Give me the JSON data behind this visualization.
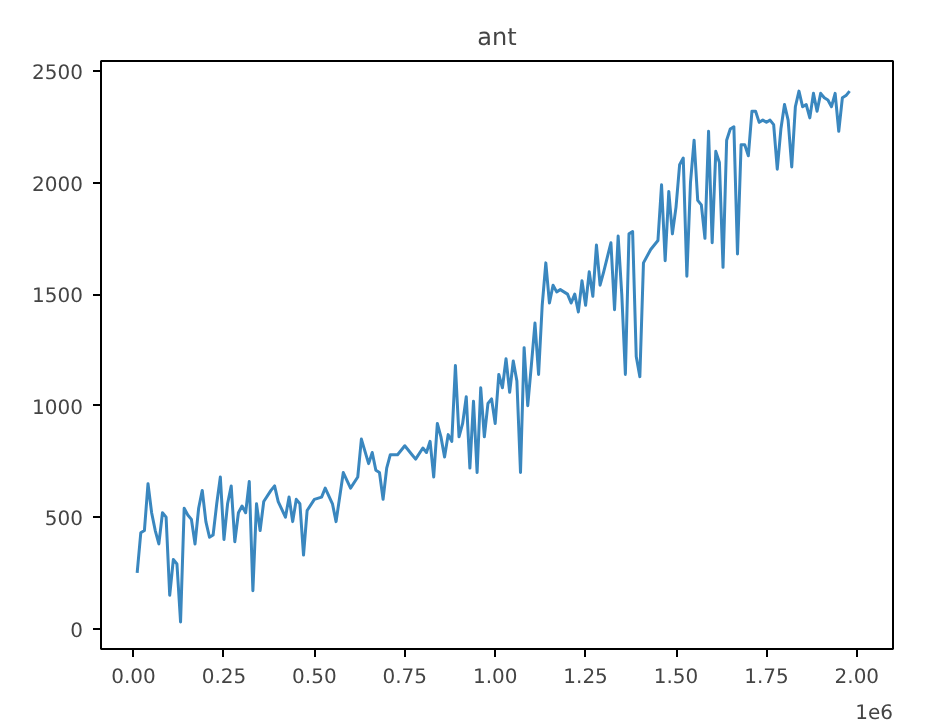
{
  "chart_data": {
    "type": "line",
    "title": "ant",
    "x": [
      0.01,
      0.02,
      0.03,
      0.04,
      0.05,
      0.06,
      0.07,
      0.08,
      0.09,
      0.1,
      0.11,
      0.12,
      0.13,
      0.14,
      0.15,
      0.16,
      0.17,
      0.18,
      0.19,
      0.2,
      0.21,
      0.22,
      0.23,
      0.24,
      0.25,
      0.26,
      0.27,
      0.28,
      0.29,
      0.3,
      0.31,
      0.32,
      0.33,
      0.34,
      0.35,
      0.36,
      0.38,
      0.39,
      0.4,
      0.42,
      0.43,
      0.44,
      0.45,
      0.46,
      0.47,
      0.48,
      0.5,
      0.52,
      0.53,
      0.55,
      0.56,
      0.58,
      0.6,
      0.62,
      0.63,
      0.65,
      0.66,
      0.67,
      0.68,
      0.69,
      0.7,
      0.71,
      0.73,
      0.75,
      0.77,
      0.78,
      0.8,
      0.81,
      0.82,
      0.83,
      0.84,
      0.85,
      0.86,
      0.87,
      0.88,
      0.89,
      0.9,
      0.91,
      0.92,
      0.93,
      0.94,
      0.95,
      0.96,
      0.97,
      0.98,
      0.99,
      1.0,
      1.01,
      1.02,
      1.03,
      1.04,
      1.05,
      1.06,
      1.07,
      1.08,
      1.09,
      1.1,
      1.11,
      1.12,
      1.13,
      1.14,
      1.15,
      1.16,
      1.17,
      1.18,
      1.2,
      1.21,
      1.22,
      1.23,
      1.24,
      1.25,
      1.26,
      1.27,
      1.28,
      1.29,
      1.3,
      1.32,
      1.33,
      1.34,
      1.35,
      1.36,
      1.37,
      1.38,
      1.39,
      1.4,
      1.41,
      1.43,
      1.45,
      1.46,
      1.47,
      1.48,
      1.49,
      1.5,
      1.51,
      1.52,
      1.53,
      1.54,
      1.55,
      1.56,
      1.57,
      1.58,
      1.59,
      1.6,
      1.61,
      1.62,
      1.63,
      1.64,
      1.65,
      1.66,
      1.67,
      1.68,
      1.69,
      1.7,
      1.71,
      1.72,
      1.73,
      1.74,
      1.75,
      1.76,
      1.77,
      1.78,
      1.79,
      1.8,
      1.81,
      1.82,
      1.83,
      1.84,
      1.85,
      1.86,
      1.87,
      1.88,
      1.89,
      1.9,
      1.91,
      1.92,
      1.93,
      1.94,
      1.95,
      1.96,
      1.97,
      1.98
    ],
    "series": [
      {
        "color": "#3a87bf",
        "values": [
          250,
          430,
          440,
          650,
          520,
          440,
          380,
          520,
          500,
          150,
          310,
          290,
          30,
          540,
          510,
          490,
          380,
          540,
          620,
          480,
          410,
          420,
          560,
          680,
          400,
          560,
          640,
          390,
          520,
          550,
          520,
          660,
          170,
          560,
          440,
          570,
          620,
          640,
          570,
          500,
          590,
          480,
          580,
          560,
          330,
          530,
          580,
          590,
          630,
          560,
          480,
          700,
          630,
          680,
          850,
          740,
          790,
          710,
          700,
          580,
          720,
          780,
          780,
          820,
          780,
          760,
          810,
          790,
          840,
          680,
          920,
          860,
          770,
          870,
          840,
          1180,
          860,
          920,
          1040,
          720,
          1020,
          700,
          1080,
          860,
          1010,
          1030,
          920,
          1140,
          1080,
          1210,
          1060,
          1200,
          1110,
          700,
          1260,
          1000,
          1180,
          1370,
          1140,
          1450,
          1640,
          1460,
          1540,
          1510,
          1520,
          1500,
          1460,
          1500,
          1420,
          1560,
          1450,
          1600,
          1490,
          1720,
          1540,
          1600,
          1730,
          1430,
          1760,
          1500,
          1140,
          1770,
          1780,
          1220,
          1130,
          1640,
          1700,
          1740,
          1990,
          1650,
          1960,
          1770,
          1890,
          2080,
          2110,
          1580,
          2000,
          2190,
          1920,
          1900,
          1750,
          2230,
          1730,
          2140,
          2090,
          1620,
          2190,
          2240,
          2250,
          1680,
          2170,
          2170,
          2120,
          2320,
          2320,
          2270,
          2280,
          2270,
          2280,
          2260,
          2060,
          2240,
          2350,
          2280,
          2070,
          2340,
          2410,
          2340,
          2350,
          2290,
          2400,
          2320,
          2400,
          2380,
          2370,
          2340,
          2400,
          2230,
          2380,
          2390,
          2410
        ]
      }
    ],
    "xlim": [
      -0.09,
      2.1
    ],
    "xticks": [
      {
        "value": 0,
        "label": "0.00"
      },
      {
        "value": 0.25,
        "label": "0.25"
      },
      {
        "value": 0.5,
        "label": "0.50"
      },
      {
        "value": 0.75,
        "label": "0.75"
      },
      {
        "value": 1.0,
        "label": "1.00"
      },
      {
        "value": 1.25,
        "label": "1.25"
      },
      {
        "value": 1.5,
        "label": "1.50"
      },
      {
        "value": 1.75,
        "label": "1.75"
      },
      {
        "value": 2.0,
        "label": "2.00"
      }
    ],
    "ylim": [
      -91,
      2545
    ],
    "yticks": [
      0,
      500,
      1000,
      1500,
      2000,
      2500
    ],
    "annotations": [
      "1e6"
    ],
    "grid": false
  }
}
